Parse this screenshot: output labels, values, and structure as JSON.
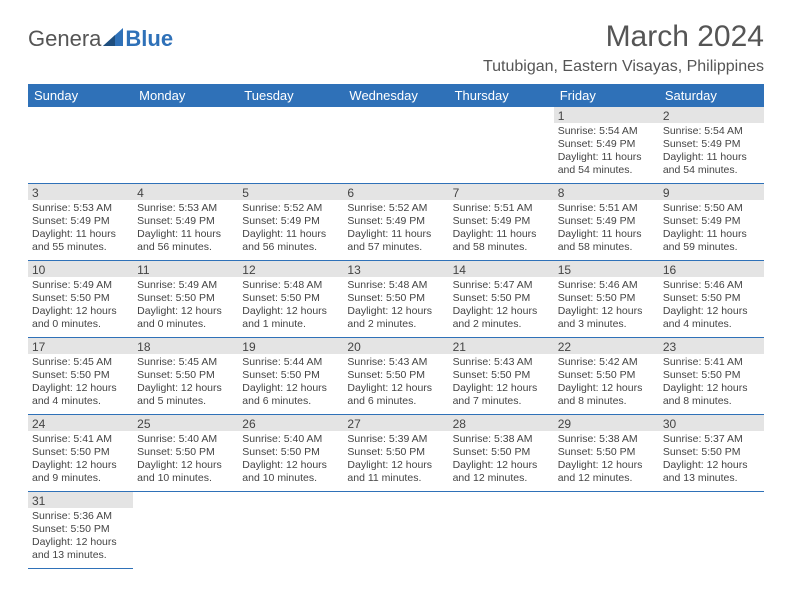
{
  "logo": {
    "part1": "Genera",
    "part2": "Blue"
  },
  "title": "March 2024",
  "location": "Tutubigan, Eastern Visayas, Philippines",
  "colors": {
    "header_bg": "#2f71b8",
    "header_text": "#ffffff",
    "daynum_bg": "#e4e4e4",
    "border": "#2f71b8",
    "body_text": "#444444",
    "title_text": "#555555"
  },
  "fonts": {
    "title_size": 30,
    "location_size": 16,
    "header_size": 13,
    "daynum_size": 12,
    "body_size": 10.5
  },
  "day_headers": [
    "Sunday",
    "Monday",
    "Tuesday",
    "Wednesday",
    "Thursday",
    "Friday",
    "Saturday"
  ],
  "weeks": [
    [
      {
        "n": "",
        "sr": "",
        "ss": "",
        "dl": ""
      },
      {
        "n": "",
        "sr": "",
        "ss": "",
        "dl": ""
      },
      {
        "n": "",
        "sr": "",
        "ss": "",
        "dl": ""
      },
      {
        "n": "",
        "sr": "",
        "ss": "",
        "dl": ""
      },
      {
        "n": "",
        "sr": "",
        "ss": "",
        "dl": ""
      },
      {
        "n": "1",
        "sr": "Sunrise: 5:54 AM",
        "ss": "Sunset: 5:49 PM",
        "dl": "Daylight: 11 hours and 54 minutes."
      },
      {
        "n": "2",
        "sr": "Sunrise: 5:54 AM",
        "ss": "Sunset: 5:49 PM",
        "dl": "Daylight: 11 hours and 54 minutes."
      }
    ],
    [
      {
        "n": "3",
        "sr": "Sunrise: 5:53 AM",
        "ss": "Sunset: 5:49 PM",
        "dl": "Daylight: 11 hours and 55 minutes."
      },
      {
        "n": "4",
        "sr": "Sunrise: 5:53 AM",
        "ss": "Sunset: 5:49 PM",
        "dl": "Daylight: 11 hours and 56 minutes."
      },
      {
        "n": "5",
        "sr": "Sunrise: 5:52 AM",
        "ss": "Sunset: 5:49 PM",
        "dl": "Daylight: 11 hours and 56 minutes."
      },
      {
        "n": "6",
        "sr": "Sunrise: 5:52 AM",
        "ss": "Sunset: 5:49 PM",
        "dl": "Daylight: 11 hours and 57 minutes."
      },
      {
        "n": "7",
        "sr": "Sunrise: 5:51 AM",
        "ss": "Sunset: 5:49 PM",
        "dl": "Daylight: 11 hours and 58 minutes."
      },
      {
        "n": "8",
        "sr": "Sunrise: 5:51 AM",
        "ss": "Sunset: 5:49 PM",
        "dl": "Daylight: 11 hours and 58 minutes."
      },
      {
        "n": "9",
        "sr": "Sunrise: 5:50 AM",
        "ss": "Sunset: 5:49 PM",
        "dl": "Daylight: 11 hours and 59 minutes."
      }
    ],
    [
      {
        "n": "10",
        "sr": "Sunrise: 5:49 AM",
        "ss": "Sunset: 5:50 PM",
        "dl": "Daylight: 12 hours and 0 minutes."
      },
      {
        "n": "11",
        "sr": "Sunrise: 5:49 AM",
        "ss": "Sunset: 5:50 PM",
        "dl": "Daylight: 12 hours and 0 minutes."
      },
      {
        "n": "12",
        "sr": "Sunrise: 5:48 AM",
        "ss": "Sunset: 5:50 PM",
        "dl": "Daylight: 12 hours and 1 minute."
      },
      {
        "n": "13",
        "sr": "Sunrise: 5:48 AM",
        "ss": "Sunset: 5:50 PM",
        "dl": "Daylight: 12 hours and 2 minutes."
      },
      {
        "n": "14",
        "sr": "Sunrise: 5:47 AM",
        "ss": "Sunset: 5:50 PM",
        "dl": "Daylight: 12 hours and 2 minutes."
      },
      {
        "n": "15",
        "sr": "Sunrise: 5:46 AM",
        "ss": "Sunset: 5:50 PM",
        "dl": "Daylight: 12 hours and 3 minutes."
      },
      {
        "n": "16",
        "sr": "Sunrise: 5:46 AM",
        "ss": "Sunset: 5:50 PM",
        "dl": "Daylight: 12 hours and 4 minutes."
      }
    ],
    [
      {
        "n": "17",
        "sr": "Sunrise: 5:45 AM",
        "ss": "Sunset: 5:50 PM",
        "dl": "Daylight: 12 hours and 4 minutes."
      },
      {
        "n": "18",
        "sr": "Sunrise: 5:45 AM",
        "ss": "Sunset: 5:50 PM",
        "dl": "Daylight: 12 hours and 5 minutes."
      },
      {
        "n": "19",
        "sr": "Sunrise: 5:44 AM",
        "ss": "Sunset: 5:50 PM",
        "dl": "Daylight: 12 hours and 6 minutes."
      },
      {
        "n": "20",
        "sr": "Sunrise: 5:43 AM",
        "ss": "Sunset: 5:50 PM",
        "dl": "Daylight: 12 hours and 6 minutes."
      },
      {
        "n": "21",
        "sr": "Sunrise: 5:43 AM",
        "ss": "Sunset: 5:50 PM",
        "dl": "Daylight: 12 hours and 7 minutes."
      },
      {
        "n": "22",
        "sr": "Sunrise: 5:42 AM",
        "ss": "Sunset: 5:50 PM",
        "dl": "Daylight: 12 hours and 8 minutes."
      },
      {
        "n": "23",
        "sr": "Sunrise: 5:41 AM",
        "ss": "Sunset: 5:50 PM",
        "dl": "Daylight: 12 hours and 8 minutes."
      }
    ],
    [
      {
        "n": "24",
        "sr": "Sunrise: 5:41 AM",
        "ss": "Sunset: 5:50 PM",
        "dl": "Daylight: 12 hours and 9 minutes."
      },
      {
        "n": "25",
        "sr": "Sunrise: 5:40 AM",
        "ss": "Sunset: 5:50 PM",
        "dl": "Daylight: 12 hours and 10 minutes."
      },
      {
        "n": "26",
        "sr": "Sunrise: 5:40 AM",
        "ss": "Sunset: 5:50 PM",
        "dl": "Daylight: 12 hours and 10 minutes."
      },
      {
        "n": "27",
        "sr": "Sunrise: 5:39 AM",
        "ss": "Sunset: 5:50 PM",
        "dl": "Daylight: 12 hours and 11 minutes."
      },
      {
        "n": "28",
        "sr": "Sunrise: 5:38 AM",
        "ss": "Sunset: 5:50 PM",
        "dl": "Daylight: 12 hours and 12 minutes."
      },
      {
        "n": "29",
        "sr": "Sunrise: 5:38 AM",
        "ss": "Sunset: 5:50 PM",
        "dl": "Daylight: 12 hours and 12 minutes."
      },
      {
        "n": "30",
        "sr": "Sunrise: 5:37 AM",
        "ss": "Sunset: 5:50 PM",
        "dl": "Daylight: 12 hours and 13 minutes."
      }
    ],
    [
      {
        "n": "31",
        "sr": "Sunrise: 5:36 AM",
        "ss": "Sunset: 5:50 PM",
        "dl": "Daylight: 12 hours and 13 minutes."
      },
      {
        "n": "",
        "sr": "",
        "ss": "",
        "dl": ""
      },
      {
        "n": "",
        "sr": "",
        "ss": "",
        "dl": ""
      },
      {
        "n": "",
        "sr": "",
        "ss": "",
        "dl": ""
      },
      {
        "n": "",
        "sr": "",
        "ss": "",
        "dl": ""
      },
      {
        "n": "",
        "sr": "",
        "ss": "",
        "dl": ""
      },
      {
        "n": "",
        "sr": "",
        "ss": "",
        "dl": ""
      }
    ]
  ]
}
